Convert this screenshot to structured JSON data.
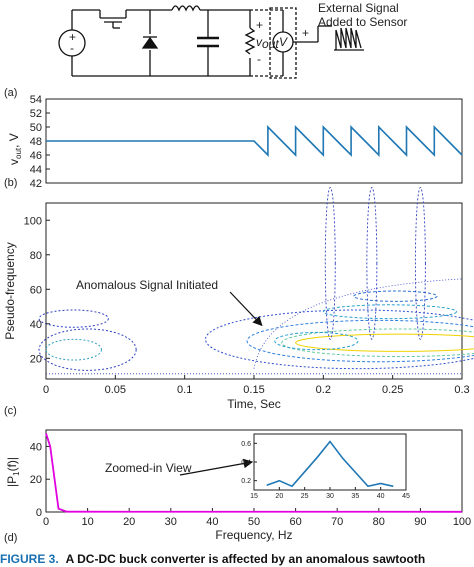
{
  "circuit": {
    "plus_label": "+",
    "minus_label": "-",
    "vout_label": "v",
    "vout_sub": "out",
    "meter_label": "V",
    "meter_plus": "+",
    "external_line1": "External Signal",
    "external_line2": "Added to Sensor"
  },
  "panel_labels": {
    "a": "(a)",
    "b": "(b)",
    "c": "(c)",
    "d": "(d)"
  },
  "caption": {
    "prefix": "FIGURE 3.",
    "text": "A DC-DC buck converter is affected by an anomalous sawtooth"
  },
  "chart_data": [
    {
      "type": "line",
      "ylabel": "v",
      "ylabel_sub": "out",
      "ylabel_unit": ", V",
      "ylim": [
        42,
        54
      ],
      "yticks": [
        "42",
        "44",
        "46",
        "48",
        "50",
        "52",
        "54"
      ],
      "xlim": [
        0,
        0.3
      ],
      "color": "#1f77b4",
      "series": [
        {
          "x": [
            0,
            0.15,
            0.16,
            0.16,
            0.175,
            0.18,
            0.18,
            0.195,
            0.2,
            0.2,
            0.215,
            0.22,
            0.22,
            0.235,
            0.24,
            0.24,
            0.255,
            0.26,
            0.26,
            0.275,
            0.28,
            0.28,
            0.3
          ],
          "y": [
            48,
            48,
            46,
            50,
            47,
            46,
            50,
            47,
            46,
            50,
            47,
            46,
            50,
            47,
            46,
            50,
            47,
            46,
            50,
            47,
            46,
            50,
            46
          ]
        }
      ]
    },
    {
      "type": "contour",
      "ylabel": "Pseudo-frequency",
      "xlabel": "Time, Sec",
      "xlim": [
        0,
        0.3
      ],
      "ylim": [
        8,
        110
      ],
      "xticks": [
        "0",
        "0.05",
        "0.1",
        "0.15",
        "0.2",
        "0.25",
        "0.3"
      ],
      "yticks": [
        "20",
        "40",
        "60",
        "80",
        "100"
      ],
      "annotation": "Anomalous Signal Initiated",
      "annotation_target": {
        "x": 0.157,
        "y": 38
      }
    },
    {
      "type": "line",
      "ylabel": "|P",
      "ylabel_sub": "1",
      "ylabel_unit": "(f)|",
      "xlabel": "Frequency, Hz",
      "xlim": [
        0,
        100
      ],
      "ylim": [
        0,
        50
      ],
      "xticks": [
        "0",
        "10",
        "20",
        "30",
        "40",
        "50",
        "60",
        "70",
        "80",
        "90",
        "100"
      ],
      "yticks": [
        "0",
        "20",
        "40"
      ],
      "color": "#e000e0",
      "series": [
        {
          "x": [
            0,
            1,
            3,
            5,
            100
          ],
          "y": [
            48,
            40,
            2,
            0.2,
            0.1
          ]
        }
      ],
      "annotation": "Zoomed-in View",
      "inset": {
        "xlim": [
          15,
          45
        ],
        "ylim": [
          0.1,
          0.7
        ],
        "xticks": [
          "15",
          "20",
          "25",
          "30",
          "35",
          "40",
          "45"
        ],
        "yticks": [
          "0.2",
          "0.4",
          "0.6"
        ],
        "color": "#1f77b4",
        "x": [
          17.5,
          20,
          22.5,
          27.5,
          30,
          32.5,
          37.5,
          40,
          42.5
        ],
        "y": [
          0.15,
          0.2,
          0.14,
          0.45,
          0.62,
          0.44,
          0.14,
          0.17,
          0.14
        ]
      }
    }
  ]
}
